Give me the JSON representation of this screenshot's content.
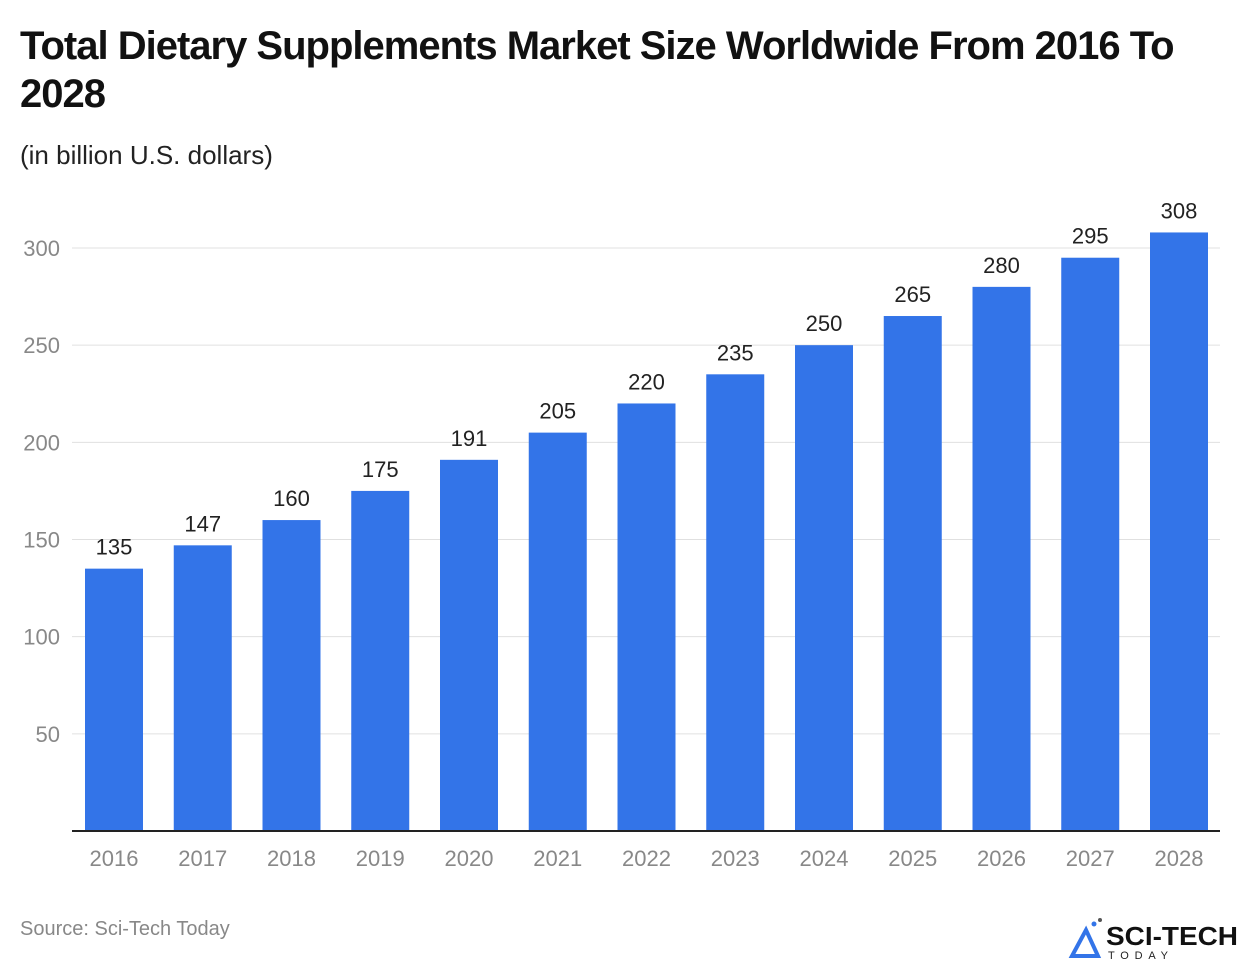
{
  "title": "Total Dietary Supplements Market Size Worldwide From 2016 To 2028",
  "subtitle": "(in billion U.S. dollars)",
  "source": "Source: Sci-Tech Today",
  "logo": {
    "text": "SCI-TECH",
    "subtext": "TODAY"
  },
  "colors": {
    "bar": "#3374e8",
    "grid": "#e0e0e0",
    "axis": "#222222",
    "tick": "#888888"
  },
  "chart_data": {
    "type": "bar",
    "title": "Total Dietary Supplements Market Size Worldwide From 2016 To 2028",
    "subtitle": "(in billion U.S. dollars)",
    "categories": [
      "2016",
      "2017",
      "2018",
      "2019",
      "2020",
      "2021",
      "2022",
      "2023",
      "2024",
      "2025",
      "2026",
      "2027",
      "2028"
    ],
    "values": [
      135,
      147,
      160,
      175,
      191,
      205,
      220,
      235,
      250,
      265,
      280,
      295,
      308
    ],
    "ylim": [
      0,
      300
    ],
    "yticks": [
      50,
      100,
      150,
      200,
      250,
      300
    ],
    "grid": true,
    "data_labels": true
  }
}
